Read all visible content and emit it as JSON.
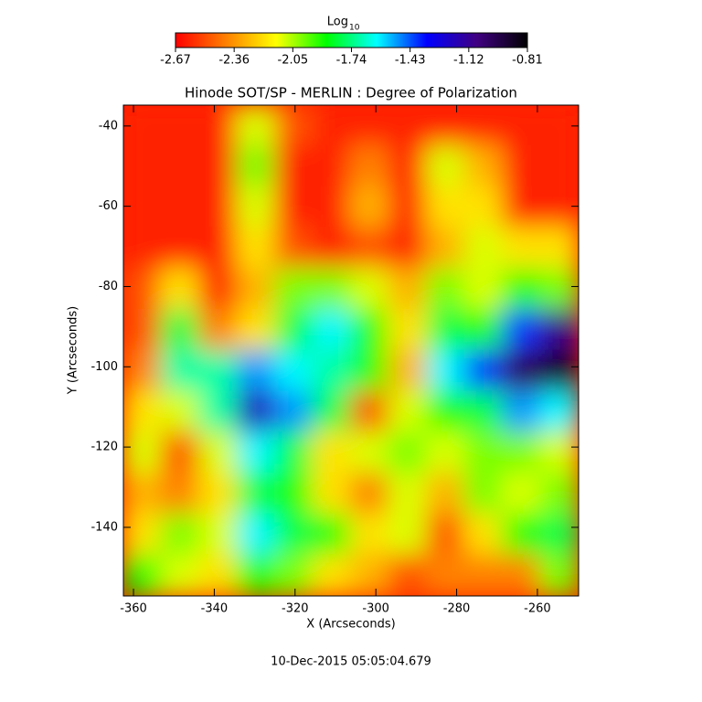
{
  "chart_data": {
    "type": "heatmap",
    "title": "Hinode SOT/SP - MERLIN : Degree of Polarization",
    "xlabel": "X (Arcseconds)",
    "ylabel": "Y (Arcseconds)",
    "footer": "10-Dec-2015 05:05:04.679",
    "colorbar_label": "Log",
    "colorbar_label_subscript": "10",
    "colormap": [
      "#ff0000",
      "#ff8000",
      "#ffff00",
      "#00ff00",
      "#00ffff",
      "#0000ff",
      "#400080",
      "#000000"
    ],
    "zlim": [
      -2.67,
      -0.81
    ],
    "zticks": [
      -2.67,
      -2.36,
      -2.05,
      -1.74,
      -1.43,
      -1.12,
      -0.81
    ],
    "xlim": [
      -362.5,
      -249.8
    ],
    "ylim": [
      -157.1,
      -34.8
    ],
    "xticks": [
      -360,
      -340,
      -320,
      -300,
      -280,
      -260
    ],
    "yticks": [
      -140,
      -120,
      -100,
      -80,
      -60,
      -40
    ],
    "z": [
      [
        -2.6,
        -2.6,
        -2.6,
        -2.1,
        -2.5,
        -2.6,
        -2.6,
        -2.6,
        -2.6,
        -2.6,
        -2.6,
        -2.6
      ],
      [
        -2.6,
        -2.6,
        -2.6,
        -2.0,
        -2.6,
        -2.6,
        -2.4,
        -2.6,
        -2.1,
        -2.3,
        -2.6,
        -2.6
      ],
      [
        -2.6,
        -2.6,
        -2.6,
        -2.1,
        -2.6,
        -2.6,
        -2.3,
        -2.6,
        -2.2,
        -2.2,
        -2.6,
        -2.6
      ],
      [
        -2.6,
        -2.6,
        -2.6,
        -2.2,
        -2.5,
        -2.6,
        -2.5,
        -2.6,
        -2.3,
        -2.1,
        -2.2,
        -2.2
      ],
      [
        -2.5,
        -2.2,
        -2.6,
        -2.3,
        -2.0,
        -2.0,
        -2.1,
        -2.3,
        -2.0,
        -2.1,
        -1.9,
        -2.0
      ],
      [
        -2.5,
        -1.8,
        -2.4,
        -2.2,
        -1.8,
        -1.6,
        -1.9,
        -2.2,
        -1.8,
        -1.9,
        -1.4,
        -1.1
      ],
      [
        -2.4,
        -1.7,
        -1.7,
        -1.5,
        -1.6,
        -1.7,
        -1.9,
        -2.3,
        -1.6,
        -1.4,
        -1.0,
        -0.9
      ],
      [
        -2.2,
        -2.1,
        -1.7,
        -1.2,
        -1.5,
        -1.8,
        -2.5,
        -2.1,
        -1.9,
        -1.8,
        -1.5,
        -1.6
      ],
      [
        -2.1,
        -2.5,
        -2.1,
        -1.6,
        -1.8,
        -2.2,
        -2.1,
        -2.0,
        -2.1,
        -2.0,
        -2.0,
        -2.1
      ],
      [
        -2.3,
        -2.4,
        -2.2,
        -1.8,
        -1.9,
        -2.2,
        -2.4,
        -2.1,
        -2.3,
        -2.0,
        -2.1,
        -2.0
      ],
      [
        -2.2,
        -2.0,
        -2.1,
        -1.6,
        -1.8,
        -1.9,
        -2.2,
        -2.1,
        -2.5,
        -2.2,
        -1.9,
        -1.8
      ],
      [
        -1.9,
        -2.1,
        -2.2,
        -1.9,
        -2.0,
        -2.2,
        -2.3,
        -2.5,
        -2.4,
        -2.4,
        -2.4,
        -2.0
      ]
    ]
  }
}
